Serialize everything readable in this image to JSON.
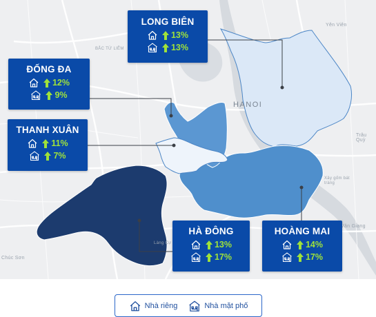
{
  "map_labels": {
    "city": "HANOI",
    "yen_vien": "Yên Viên",
    "bac_tu_liem": "BẮC TỪ LIÊM",
    "trau_quy": "Trâu Quỳ",
    "chuc_son": "Chúc Sơn",
    "van_giang": "Văn Giang",
    "xay_gom": "Xây gốm bát tràng",
    "lang_cu": "Làng Cự"
  },
  "colors": {
    "card": "#0a4aa8",
    "up_value": "#9fe23a",
    "long_bien": "#dbe8f7",
    "hoang_mai": "#4f8fcc",
    "ha_dong": "#1c3b6e",
    "dong_da": "#5b97d2",
    "thanh_xuan": "#eef4fb"
  },
  "districts": [
    {
      "id": "long_bien",
      "name": "LONG BIÊN",
      "house": "13%",
      "street_house": "13%"
    },
    {
      "id": "dong_da",
      "name": "ĐỐNG ĐA",
      "house": "12%",
      "street_house": "9%"
    },
    {
      "id": "thanh_xuan",
      "name": "THANH XUÂN",
      "house": "11%",
      "street_house": "7%"
    },
    {
      "id": "ha_dong",
      "name": "HÀ ĐÔNG",
      "house": "13%",
      "street_house": "17%"
    },
    {
      "id": "hoang_mai",
      "name": "HOÀNG MAI",
      "house": "14%",
      "street_house": "17%"
    }
  ],
  "legend": {
    "house_label": "Nhà riêng",
    "street_house_label": "Nhà mặt phố"
  },
  "icons": [
    "house-icon",
    "street-house-icon",
    "up-arrow-icon"
  ]
}
